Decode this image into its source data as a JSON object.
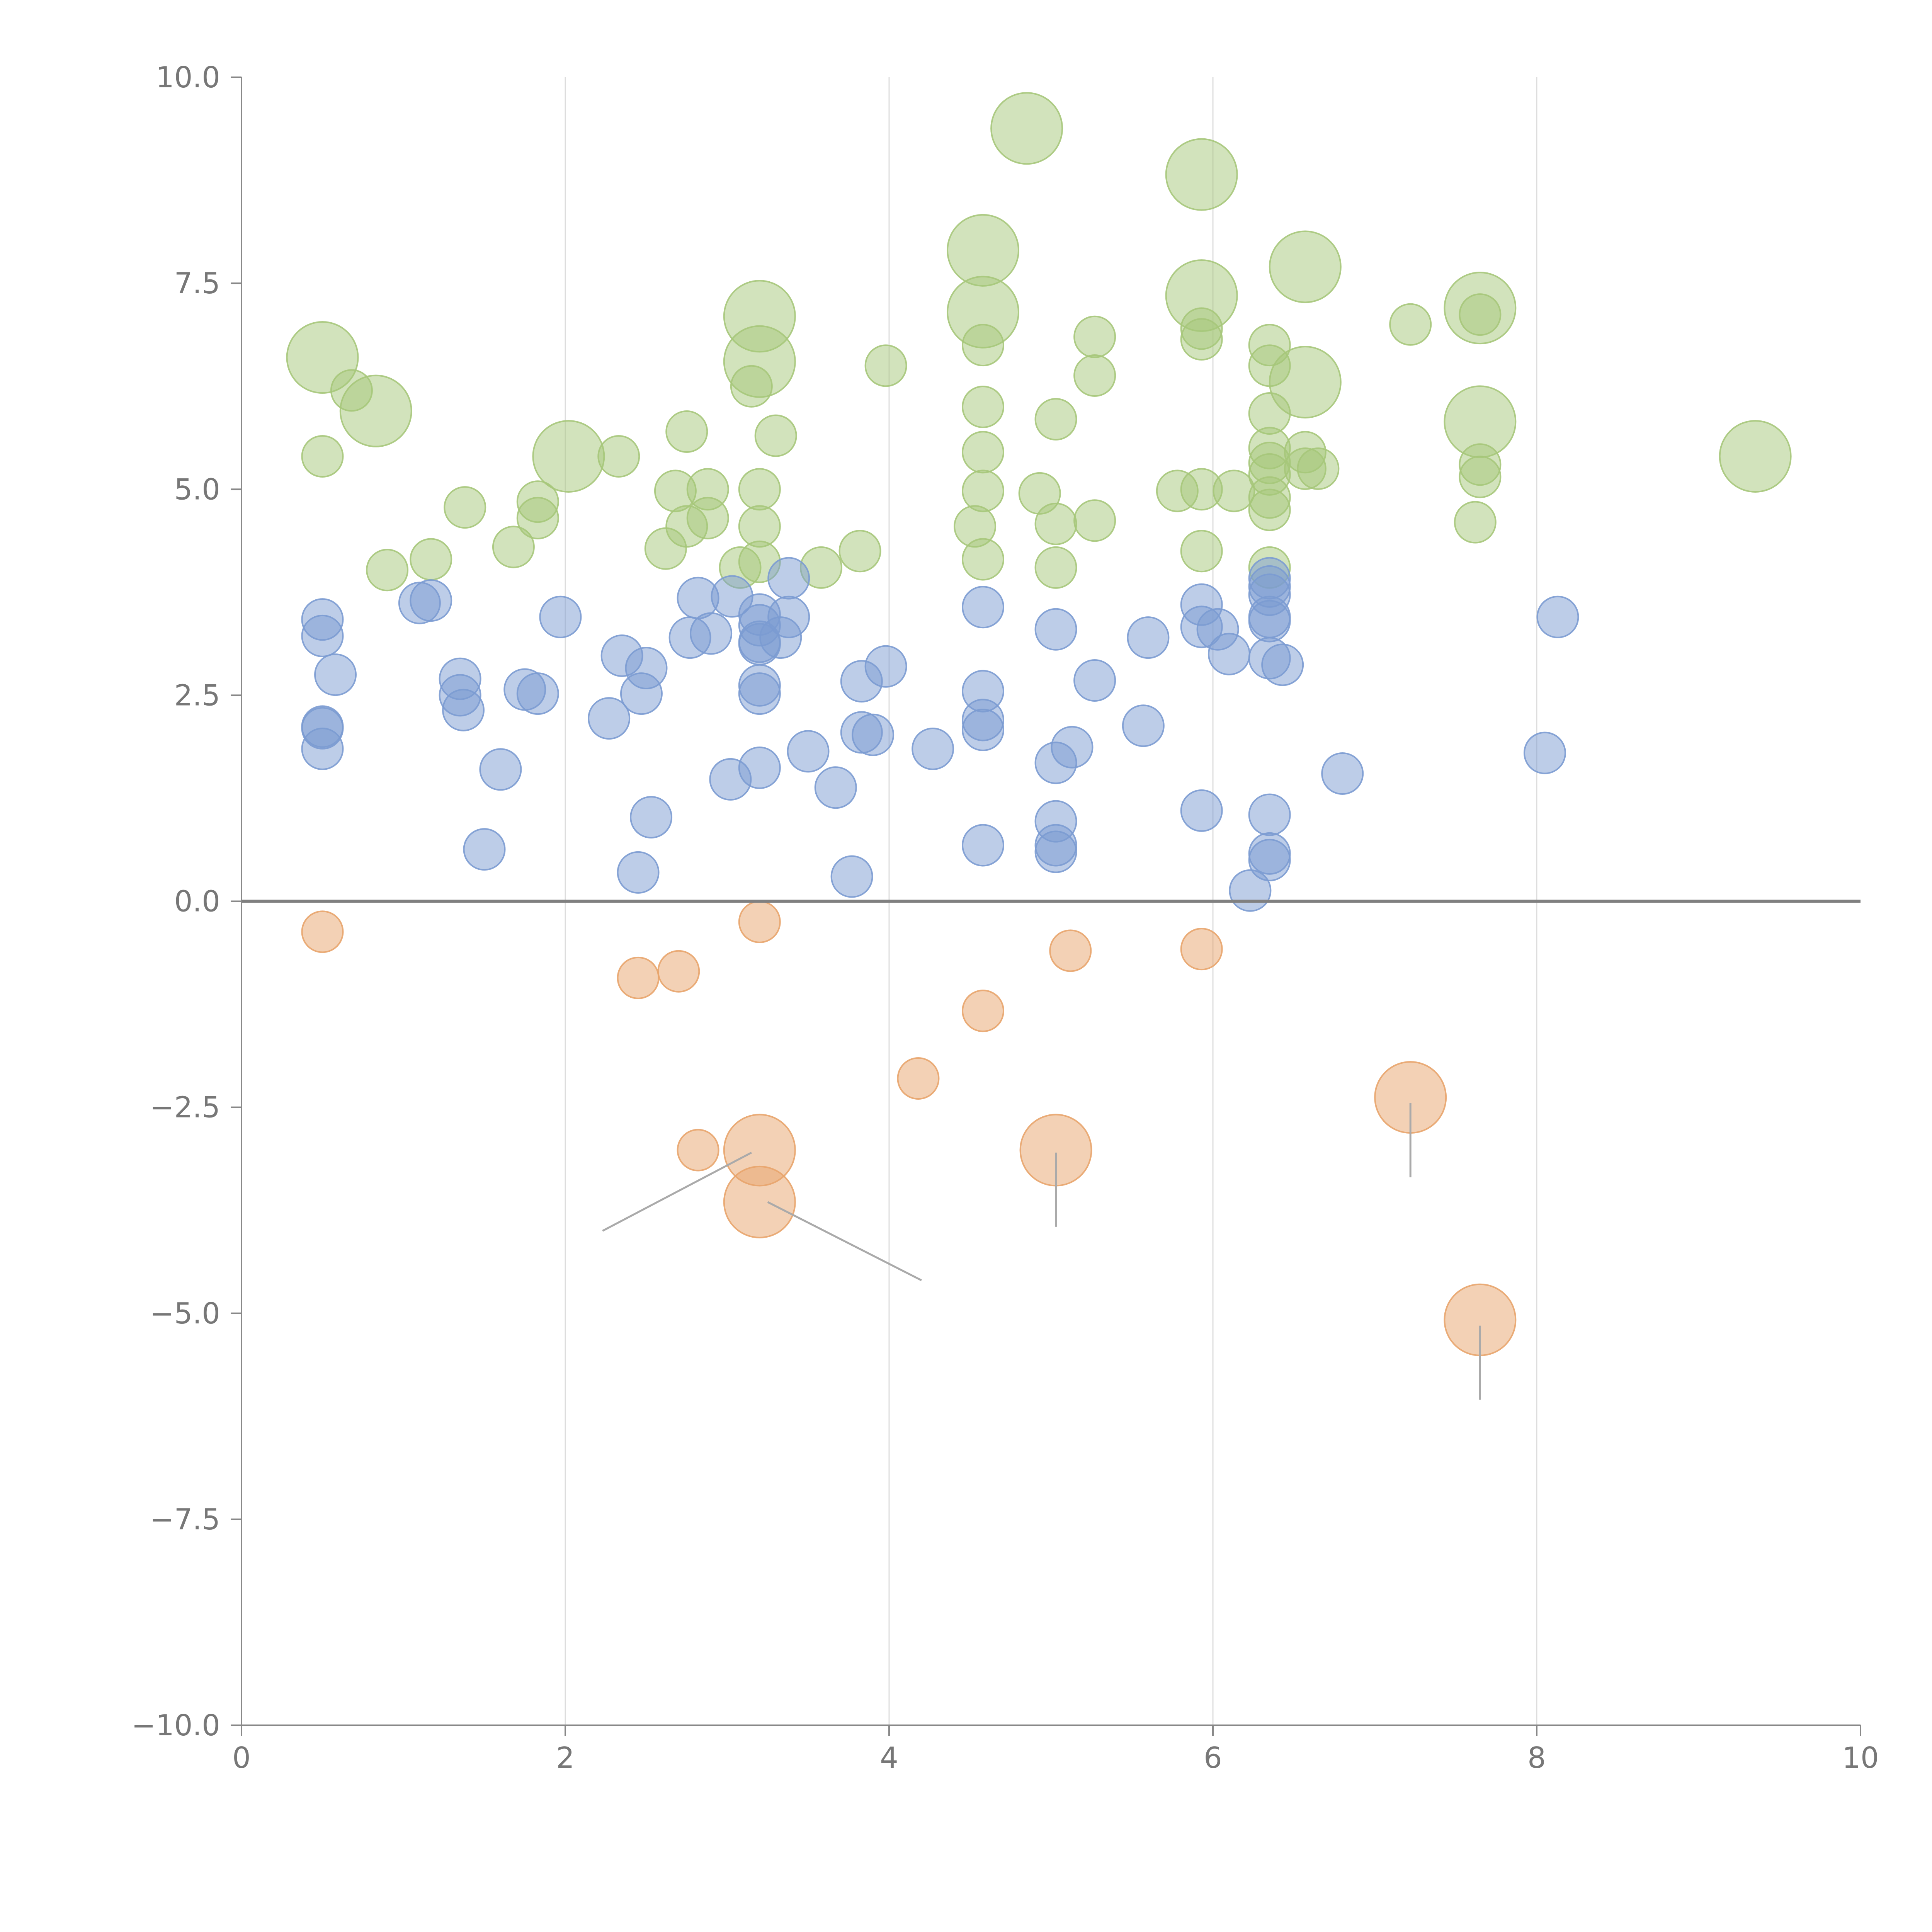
{
  "chart_data": {
    "type": "scatter",
    "title": "",
    "xlabel": "",
    "ylabel": "",
    "xlim": [
      0,
      10
    ],
    "ylim": [
      -10,
      10
    ],
    "x_ticks": [
      "0",
      "2",
      "4",
      "6",
      "8",
      "10"
    ],
    "y_ticks": [
      "10.0",
      "7.5",
      "5.0",
      "2.5",
      "0.0",
      "−2.5",
      "−5.0",
      "−7.5",
      "−10.0"
    ],
    "x_grid": true,
    "y_zero_line": true,
    "colors": {
      "green": "#a6c77a",
      "blue": "#7b9bd1",
      "orange": "#e8a46c",
      "axis": "#888888",
      "grid": "#dddddd"
    },
    "series": [
      {
        "name": "green",
        "color": "#a6c77a",
        "points": [
          [
            0.5,
            6.6,
            2
          ],
          [
            0.68,
            6.2,
            1
          ],
          [
            0.83,
            5.95,
            2
          ],
          [
            0.5,
            5.4,
            1
          ],
          [
            0.9,
            4.02,
            1
          ],
          [
            1.17,
            4.15,
            1
          ],
          [
            1.38,
            4.78,
            1
          ],
          [
            1.68,
            4.3,
            1
          ],
          [
            1.83,
            4.85,
            1
          ],
          [
            1.83,
            4.65,
            1
          ],
          [
            2.02,
            5.4,
            2
          ],
          [
            2.33,
            5.4,
            1
          ],
          [
            2.62,
            4.28,
            1
          ],
          [
            2.68,
            4.98,
            1
          ],
          [
            2.75,
            5.7,
            1
          ],
          [
            2.75,
            4.55,
            1
          ],
          [
            2.88,
            5.0,
            1
          ],
          [
            2.88,
            4.65,
            1
          ],
          [
            3.08,
            4.05,
            1
          ],
          [
            3.2,
            7.1,
            2
          ],
          [
            3.2,
            6.55,
            2
          ],
          [
            3.2,
            5.0,
            1
          ],
          [
            3.2,
            4.55,
            1
          ],
          [
            3.2,
            4.12,
            1
          ],
          [
            3.15,
            6.25,
            1
          ],
          [
            3.3,
            5.65,
            1
          ],
          [
            3.58,
            4.05,
            1
          ],
          [
            3.82,
            4.25,
            1
          ],
          [
            3.98,
            6.5,
            1
          ],
          [
            4.58,
            7.9,
            2
          ],
          [
            4.58,
            7.15,
            2
          ],
          [
            4.58,
            6.75,
            1
          ],
          [
            4.58,
            6.0,
            1
          ],
          [
            4.58,
            5.45,
            1
          ],
          [
            4.58,
            4.98,
            1
          ],
          [
            4.53,
            4.55,
            1
          ],
          [
            4.58,
            4.15,
            1
          ],
          [
            4.85,
            9.38,
            2
          ],
          [
            4.93,
            4.95,
            1
          ],
          [
            5.03,
            5.85,
            1
          ],
          [
            5.03,
            4.58,
            1
          ],
          [
            5.03,
            4.05,
            1
          ],
          [
            5.27,
            6.85,
            1
          ],
          [
            5.27,
            6.38,
            1
          ],
          [
            5.27,
            4.62,
            1
          ],
          [
            5.78,
            4.98,
            1
          ],
          [
            5.93,
            8.82,
            2
          ],
          [
            5.93,
            7.35,
            2
          ],
          [
            5.93,
            6.95,
            1
          ],
          [
            5.93,
            6.82,
            1
          ],
          [
            5.93,
            5.0,
            1
          ],
          [
            5.93,
            4.25,
            1
          ],
          [
            6.13,
            4.98,
            1
          ],
          [
            6.35,
            6.75,
            1
          ],
          [
            6.35,
            6.5,
            1
          ],
          [
            6.35,
            5.92,
            1
          ],
          [
            6.35,
            5.5,
            1
          ],
          [
            6.35,
            5.32,
            1
          ],
          [
            6.35,
            5.18,
            1
          ],
          [
            6.35,
            4.9,
            1
          ],
          [
            6.35,
            4.75,
            1
          ],
          [
            6.35,
            4.05,
            1
          ],
          [
            6.57,
            7.7,
            2
          ],
          [
            6.57,
            6.3,
            2
          ],
          [
            6.57,
            5.45,
            1
          ],
          [
            6.57,
            5.25,
            1
          ],
          [
            6.65,
            5.25,
            1
          ],
          [
            7.22,
            7.0,
            1
          ],
          [
            7.65,
            7.2,
            2
          ],
          [
            7.65,
            7.12,
            1
          ],
          [
            7.65,
            5.82,
            2
          ],
          [
            7.65,
            5.3,
            1
          ],
          [
            7.65,
            5.15,
            1
          ],
          [
            7.62,
            4.6,
            1
          ],
          [
            9.35,
            5.4,
            2
          ]
        ]
      },
      {
        "name": "blue",
        "color": "#7b9bd1",
        "points": [
          [
            0.5,
            3.42,
            1
          ],
          [
            0.5,
            3.22,
            1
          ],
          [
            0.58,
            2.75,
            1
          ],
          [
            0.5,
            2.12,
            1
          ],
          [
            0.5,
            2.1,
            1
          ],
          [
            0.5,
            1.85,
            1
          ],
          [
            1.1,
            3.62,
            1
          ],
          [
            1.17,
            3.65,
            1
          ],
          [
            1.35,
            2.7,
            1
          ],
          [
            1.35,
            2.5,
            1
          ],
          [
            1.37,
            2.32,
            1
          ],
          [
            1.5,
            0.63,
            1
          ],
          [
            1.6,
            1.6,
            1
          ],
          [
            1.75,
            2.57,
            1
          ],
          [
            1.83,
            2.52,
            1
          ],
          [
            1.97,
            3.45,
            1
          ],
          [
            2.27,
            2.22,
            1
          ],
          [
            2.35,
            2.98,
            1
          ],
          [
            2.45,
            0.35,
            1
          ],
          [
            2.47,
            2.52,
            1
          ],
          [
            2.5,
            2.83,
            1
          ],
          [
            2.53,
            1.02,
            1
          ],
          [
            2.77,
            3.2,
            1
          ],
          [
            2.82,
            3.68,
            1
          ],
          [
            2.9,
            3.25,
            1
          ],
          [
            3.02,
            1.48,
            1
          ],
          [
            3.03,
            3.7,
            1
          ],
          [
            3.2,
            3.48,
            1
          ],
          [
            3.2,
            3.35,
            1
          ],
          [
            3.2,
            3.15,
            1
          ],
          [
            3.2,
            3.12,
            1
          ],
          [
            3.2,
            2.62,
            1
          ],
          [
            3.2,
            2.52,
            1
          ],
          [
            3.2,
            1.62,
            1
          ],
          [
            3.33,
            3.2,
            1
          ],
          [
            3.38,
            3.92,
            1
          ],
          [
            3.38,
            3.45,
            1
          ],
          [
            3.5,
            1.82,
            1
          ],
          [
            3.67,
            1.38,
            1
          ],
          [
            3.77,
            0.3,
            1
          ],
          [
            3.83,
            2.67,
            1
          ],
          [
            3.83,
            2.05,
            1
          ],
          [
            3.9,
            2.02,
            1
          ],
          [
            3.98,
            2.85,
            1
          ],
          [
            4.27,
            1.85,
            1
          ],
          [
            4.58,
            3.57,
            1
          ],
          [
            4.58,
            2.55,
            1
          ],
          [
            4.58,
            2.2,
            1
          ],
          [
            4.58,
            2.08,
            1
          ],
          [
            4.58,
            0.68,
            1
          ],
          [
            5.03,
            3.3,
            1
          ],
          [
            5.03,
            1.68,
            1
          ],
          [
            5.03,
            0.97,
            1
          ],
          [
            5.03,
            0.68,
            1
          ],
          [
            5.03,
            0.6,
            1
          ],
          [
            5.13,
            1.87,
            1
          ],
          [
            5.27,
            2.68,
            1
          ],
          [
            5.57,
            2.13,
            1
          ],
          [
            5.6,
            3.2,
            1
          ],
          [
            5.93,
            3.6,
            1
          ],
          [
            5.93,
            3.33,
            1
          ],
          [
            5.93,
            1.1,
            1
          ],
          [
            6.03,
            3.3,
            1
          ],
          [
            6.1,
            3.0,
            1
          ],
          [
            6.23,
            0.13,
            1
          ],
          [
            6.35,
            3.92,
            1
          ],
          [
            6.35,
            3.82,
            1
          ],
          [
            6.35,
            3.72,
            1
          ],
          [
            6.35,
            3.45,
            1
          ],
          [
            6.35,
            3.4,
            1
          ],
          [
            6.35,
            2.95,
            1
          ],
          [
            6.35,
            1.05,
            1
          ],
          [
            6.35,
            0.58,
            1
          ],
          [
            6.35,
            0.5,
            1
          ],
          [
            6.43,
            2.87,
            1
          ],
          [
            6.8,
            1.55,
            1
          ],
          [
            8.05,
            1.8,
            1
          ],
          [
            8.13,
            3.45,
            1
          ]
        ]
      },
      {
        "name": "orange",
        "color": "#e8a46c",
        "points": [
          [
            0.5,
            -0.37,
            1
          ],
          [
            2.45,
            -0.93,
            1
          ],
          [
            2.7,
            -0.85,
            1
          ],
          [
            3.2,
            -0.25,
            1
          ],
          [
            4.58,
            -1.33,
            1
          ],
          [
            4.18,
            -2.15,
            1
          ],
          [
            2.82,
            -3.02,
            1
          ],
          [
            3.2,
            -3.02,
            2
          ],
          [
            3.2,
            -3.65,
            2
          ],
          [
            5.03,
            -3.02,
            2
          ],
          [
            5.12,
            -0.6,
            1
          ],
          [
            5.93,
            -0.58,
            1
          ],
          [
            7.22,
            -2.38,
            2
          ],
          [
            7.65,
            -5.08,
            2
          ]
        ]
      }
    ],
    "leader_lines": [
      {
        "from": [
          3.15,
          -3.05
        ],
        "to": [
          2.23,
          -4.0
        ]
      },
      {
        "from": [
          3.25,
          -3.65
        ],
        "to": [
          4.2,
          -4.6
        ]
      },
      {
        "from": [
          5.03,
          -3.05
        ],
        "to": [
          5.03,
          -3.95
        ]
      },
      {
        "from": [
          7.22,
          -2.45
        ],
        "to": [
          7.22,
          -3.35
        ]
      },
      {
        "from": [
          7.65,
          -5.15
        ],
        "to": [
          7.65,
          -6.05
        ]
      }
    ]
  }
}
